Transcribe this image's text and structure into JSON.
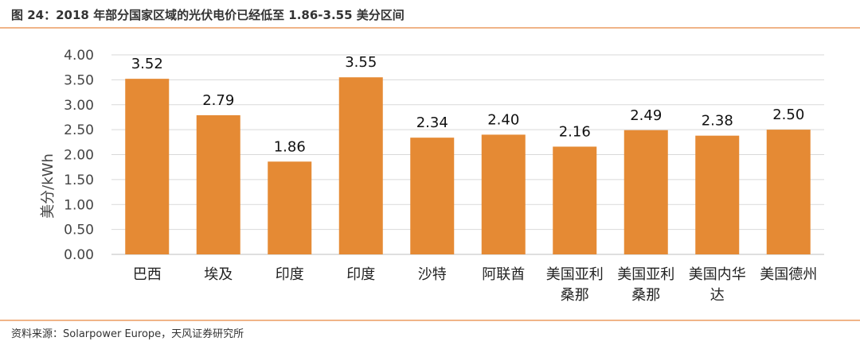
{
  "figure": {
    "title": "图 24：2018 年部分国家区域的光伏电价已经低至 1.86-3.55  美分区间",
    "source": "资料来源：Solarpower Europe，天风证券研究所"
  },
  "chart_data": {
    "type": "bar",
    "title": "",
    "xlabel": "",
    "ylabel": "美分/kWh",
    "ylim": [
      0,
      4
    ],
    "yticks": [
      "0.00",
      "0.50",
      "1.00",
      "1.50",
      "2.00",
      "2.50",
      "3.00",
      "3.50",
      "4.00"
    ],
    "grid": true,
    "legend": "none",
    "bar_color": "#e58a34",
    "categories": [
      [
        "巴西"
      ],
      [
        "埃及"
      ],
      [
        "印度"
      ],
      [
        "印度"
      ],
      [
        "沙特"
      ],
      [
        "阿联酋"
      ],
      [
        "美国亚利",
        "桑那"
      ],
      [
        "美国亚利",
        "桑那"
      ],
      [
        "美国内华",
        "达"
      ],
      [
        "美国德州"
      ]
    ],
    "values": [
      3.52,
      2.79,
      1.86,
      3.55,
      2.34,
      2.4,
      2.16,
      2.49,
      2.38,
      2.5
    ],
    "data_labels": [
      "3.52",
      "2.79",
      "1.86",
      "3.55",
      "2.34",
      "2.40",
      "2.16",
      "2.49",
      "2.38",
      "2.50"
    ]
  }
}
